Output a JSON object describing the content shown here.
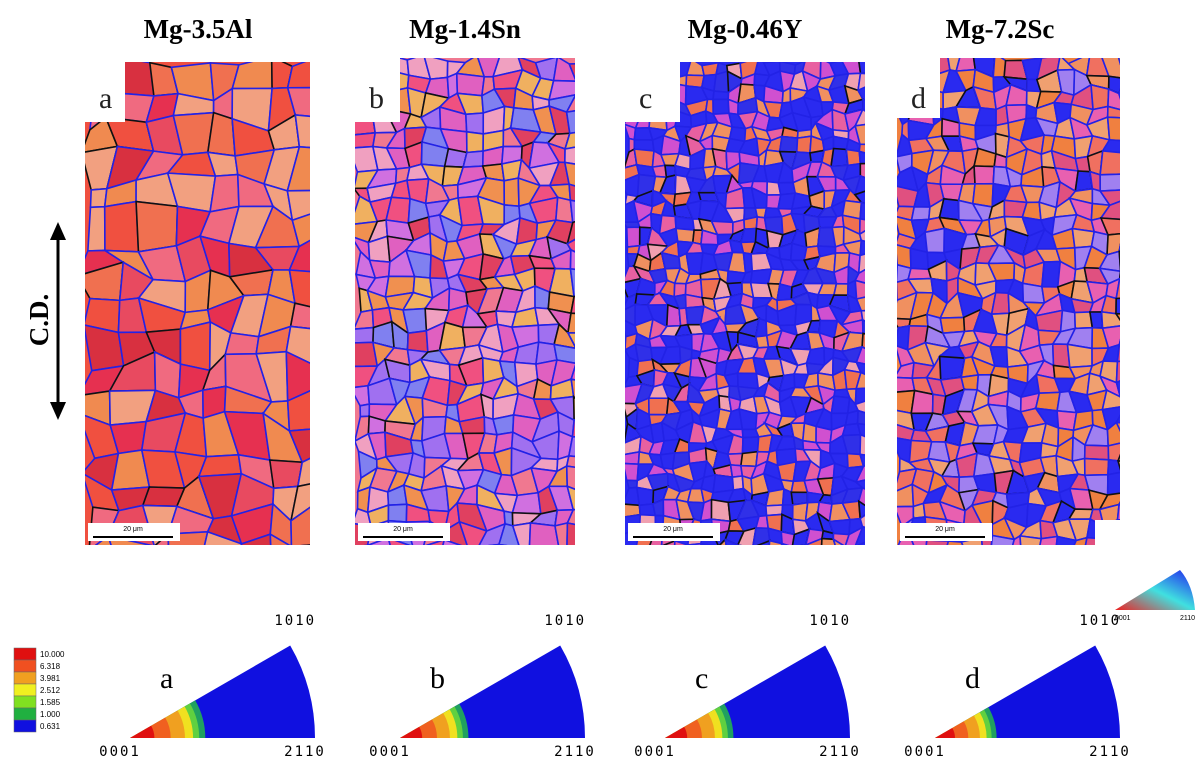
{
  "panels": [
    {
      "title": "Mg-3.5Al",
      "letter": "a",
      "scale_bar": "20 μm"
    },
    {
      "title": "Mg-1.4Sn",
      "letter": "b",
      "scale_bar": "20 μm"
    },
    {
      "title": "Mg-0.46Y",
      "letter": "c",
      "scale_bar": "20 μm"
    },
    {
      "title": "Mg-7.2Sc",
      "letter": "d",
      "scale_bar": "20 μm"
    }
  ],
  "cd_label": "C.D.",
  "legend": {
    "values": [
      "10.000",
      "6.318",
      "3.981",
      "2.512",
      "1.585",
      "1.000",
      "0.631"
    ]
  },
  "pole_figures": [
    {
      "letter": "a",
      "top": "1010",
      "left": "0001",
      "right": "2110"
    },
    {
      "letter": "b",
      "top": "1010",
      "left": "0001",
      "right": "2110"
    },
    {
      "letter": "c",
      "top": "1010",
      "left": "0001",
      "right": "2110"
    },
    {
      "letter": "d",
      "top": "1010",
      "left": "0001",
      "right": "2110"
    }
  ],
  "ipf_key": {
    "left": "0001",
    "right": "2110"
  }
}
